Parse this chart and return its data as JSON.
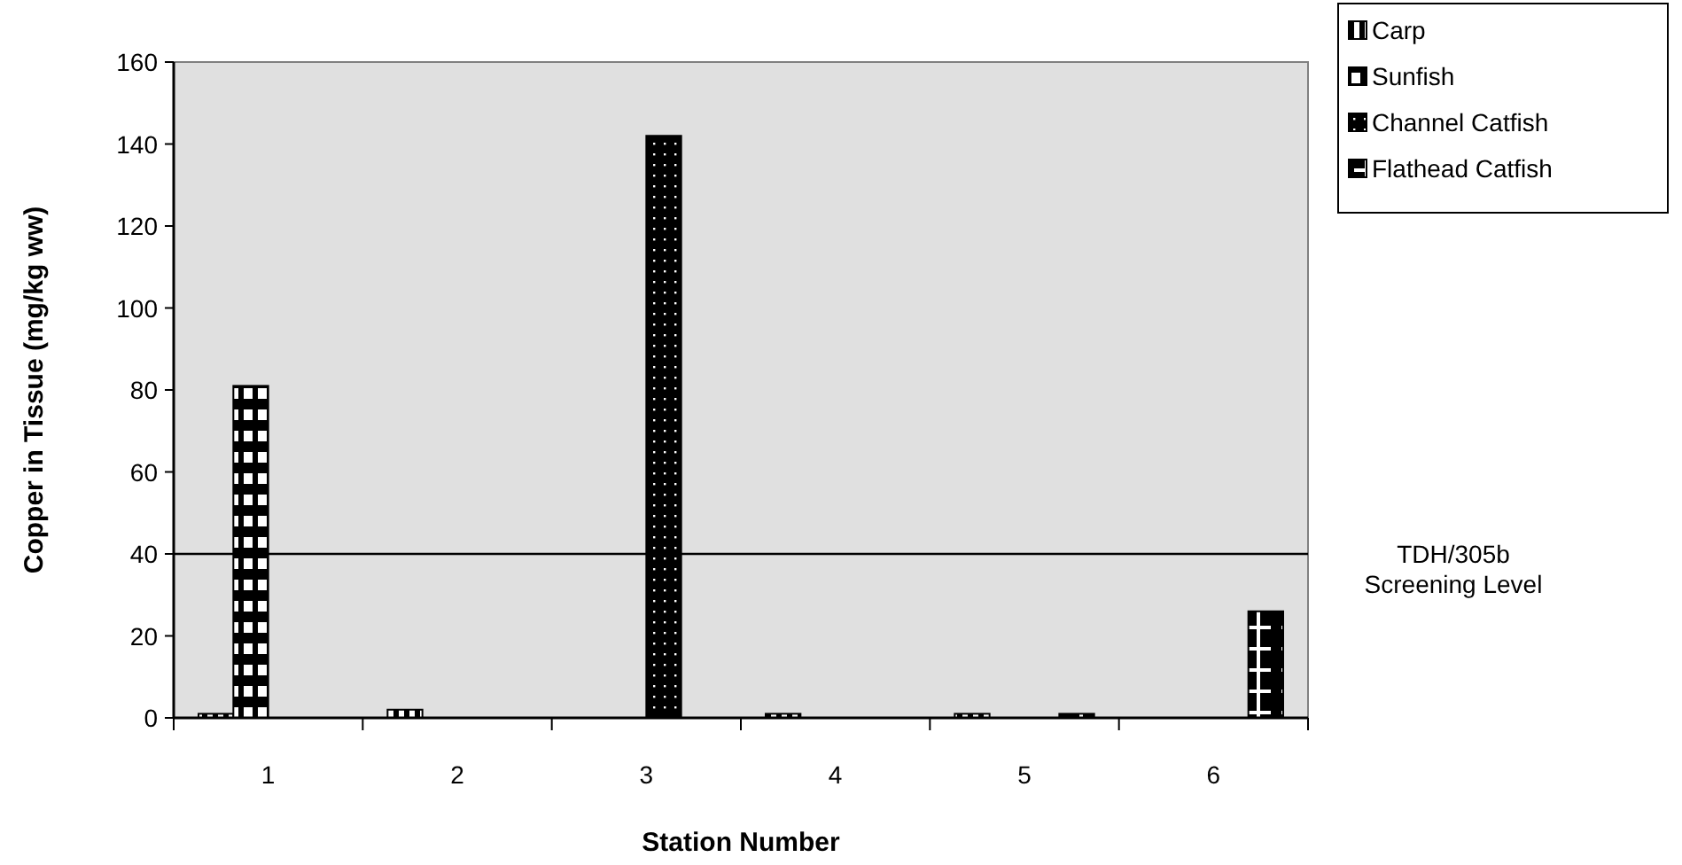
{
  "chart_data": {
    "type": "bar",
    "xlabel": "Station Number",
    "ylabel": "Copper in Tissue (mg/kg ww)",
    "categories": [
      "1",
      "2",
      "3",
      "4",
      "5",
      "6"
    ],
    "series": [
      {
        "name": "Carp",
        "color": "#000000",
        "values": [
          1,
          2,
          null,
          1,
          1,
          null
        ]
      },
      {
        "name": "Sunfish",
        "color": "#000000",
        "values": [
          81,
          null,
          null,
          null,
          null,
          null
        ]
      },
      {
        "name": "Channel Catfish",
        "color": "#000000",
        "values": [
          null,
          null,
          142,
          null,
          null,
          null
        ]
      },
      {
        "name": "Flathead Catfish",
        "color": "#000000",
        "values": [
          null,
          null,
          null,
          null,
          1,
          26
        ]
      }
    ],
    "ylim": [
      0,
      160
    ],
    "yticks": [
      0,
      20,
      40,
      60,
      80,
      100,
      120,
      140,
      160
    ],
    "grid": false,
    "legend": "top right",
    "ref_lines": [
      {
        "axis": "y",
        "value": 40,
        "label": "TDH/305b Screening Level",
        "color": "#000000"
      }
    ]
  }
}
